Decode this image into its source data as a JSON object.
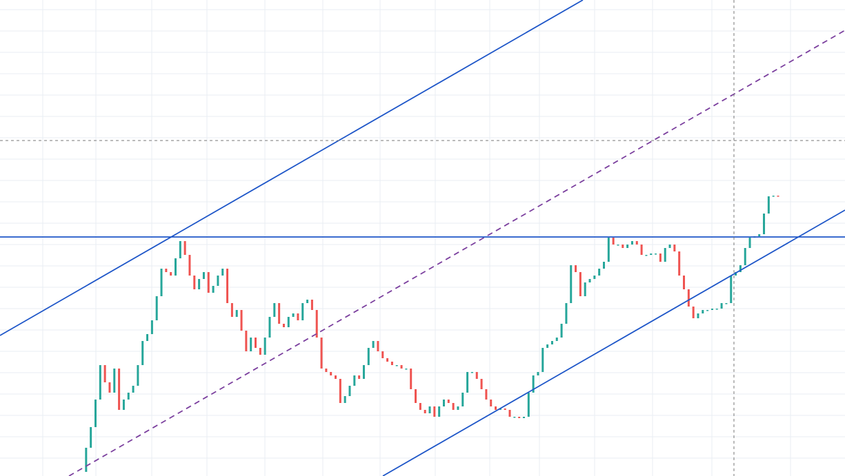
{
  "chart_data": {
    "type": "candlestick",
    "ylim": [
      0,
      691
    ],
    "up_color": "#26a69a",
    "down_color": "#ef5350",
    "values": [
      6,
      41,
      71,
      111,
      161,
      136,
      121,
      156,
      96,
      111,
      121,
      131,
      161,
      196,
      206,
      226,
      261,
      301,
      296,
      291,
      316,
      341,
      321,
      291,
      271,
      286,
      296,
      266,
      276,
      291,
      301,
      251,
      231,
      241,
      211,
      181,
      201,
      186,
      176,
      201,
      231,
      251,
      221,
      216,
      231,
      236,
      226,
      251,
      256,
      241,
      201,
      156,
      151,
      146,
      141,
      106,
      116,
      131,
      146,
      141,
      161,
      186,
      196,
      181,
      171,
      166,
      161,
      161,
      156,
      156,
      126,
      106,
      96,
      91,
      101,
      86,
      101,
      111,
      106,
      96,
      101,
      121,
      151,
      151,
      141,
      126,
      111,
      101,
      96,
      98,
      96,
      86,
      86,
      84,
      86,
      121,
      146,
      151,
      186,
      191,
      196,
      201,
      221,
      251,
      306,
      296,
      261,
      281,
      286,
      291,
      301,
      311,
      346,
      336,
      336,
      331,
      336,
      341,
      336,
      321,
      321,
      323,
      323,
      311,
      331,
      336,
      326,
      291,
      271,
      246,
      229,
      236,
      241,
      241,
      243,
      243,
      251,
      251,
      291,
      296,
      306,
      331,
      346,
      348,
      351,
      381,
      406,
      407,
      406
    ]
  }
}
